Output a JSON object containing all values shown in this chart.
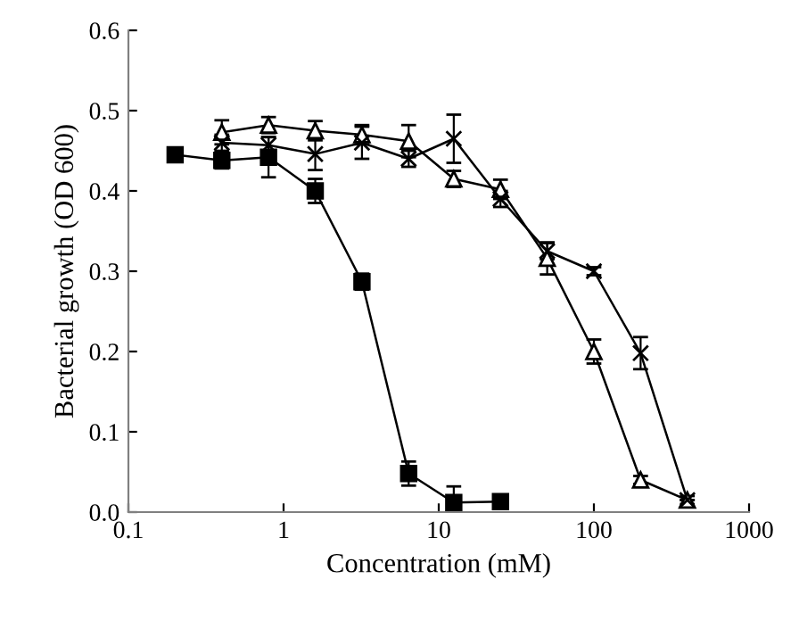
{
  "chart_data": {
    "type": "line",
    "xlabel": "Concentration (mM)",
    "ylabel": "Bacterial growth (OD 600)",
    "log": "x",
    "xlim": [
      0.1,
      1000
    ],
    "xticks": [
      0.1,
      1,
      10,
      100,
      1000
    ],
    "ylim": [
      0,
      0.6
    ],
    "yticks": [
      {
        "value": 0,
        "label": "0.0"
      },
      0.1,
      0.2,
      0.3,
      0.4,
      0.5,
      0.6
    ],
    "grid": false,
    "series": [
      {
        "color": "#000000",
        "marker": "square",
        "x": [
          0.2,
          0.4,
          0.8,
          1.6,
          3.2,
          6.4,
          12.5,
          25
        ],
        "values": [
          0.445,
          0.438,
          0.442,
          0.4,
          0.287,
          0.048,
          0.012,
          0.013
        ],
        "errors": [
          null,
          0.01,
          0.025,
          0.015,
          0.01,
          0.015,
          0.02,
          0.005
        ]
      },
      {
        "color": "#000000",
        "marker": "triangle",
        "x": [
          0.4,
          0.8,
          1.6,
          3.2,
          6.4,
          12.5,
          25,
          50,
          100,
          200,
          400
        ],
        "values": [
          0.473,
          0.482,
          0.475,
          0.47,
          0.462,
          0.415,
          0.402,
          0.316,
          0.2,
          0.04,
          0.015
        ],
        "errors": [
          0.015,
          0.01,
          0.012,
          0.012,
          0.02,
          0.01,
          0.012,
          0.02,
          0.015,
          0.005,
          0.005
        ]
      },
      {
        "color": "#000000",
        "marker": "cross",
        "x": [
          0.4,
          0.8,
          1.6,
          3.2,
          6.4,
          12.5,
          25,
          50,
          100,
          200,
          400
        ],
        "values": [
          0.46,
          0.457,
          0.446,
          0.46,
          0.44,
          0.465,
          0.39,
          0.325,
          0.3,
          0.198,
          0.015
        ],
        "errors": [
          0.01,
          0.01,
          0.02,
          0.02,
          0.01,
          0.03,
          0.01,
          0.01,
          0.005,
          0.02,
          null
        ]
      }
    ]
  }
}
